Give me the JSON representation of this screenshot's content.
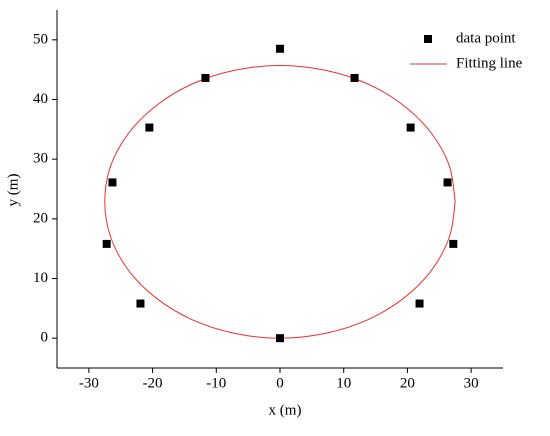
{
  "chart_data": {
    "type": "scatter",
    "x_label": "x (m)",
    "y_label": "y (m)",
    "xlim": [
      -35,
      35
    ],
    "ylim": [
      -5,
      55
    ],
    "xticks": [
      -30,
      -20,
      -10,
      0,
      10,
      20,
      30
    ],
    "yticks": [
      0,
      10,
      20,
      30,
      40,
      50
    ],
    "legend": "top-right",
    "series": [
      {
        "name": "data point",
        "type": "scatter",
        "color": "#000000",
        "x": [
          0,
          11.7,
          -11.7,
          20.5,
          -20.5,
          26.3,
          -26.3,
          27.2,
          -27.2,
          21.9,
          -21.9,
          0
        ],
        "y": [
          48.5,
          43.6,
          43.6,
          35.3,
          35.3,
          26.1,
          26.1,
          15.8,
          15.8,
          5.8,
          5.8,
          0
        ]
      },
      {
        "name": "Fitting line",
        "type": "line",
        "color": "#e8312f",
        "x": [
          27.5,
          26.6,
          23.8,
          19.4,
          13.8,
          7.1,
          0,
          -7.1,
          -13.8,
          -19.4,
          -23.8,
          -26.6,
          -27.5,
          -26.6,
          -23.8,
          -19.4,
          -13.8,
          -7.1,
          0,
          7.1,
          13.8,
          19.4,
          23.8,
          26.6,
          27.5
        ],
        "y": [
          22.9,
          28.8,
          34.3,
          39.0,
          42.6,
          44.9,
          45.7,
          44.9,
          42.6,
          39.0,
          34.3,
          28.8,
          22.9,
          17.0,
          11.4,
          6.7,
          3.1,
          0.8,
          0,
          0.8,
          3.1,
          6.7,
          11.4,
          17.0,
          22.9
        ]
      }
    ]
  }
}
